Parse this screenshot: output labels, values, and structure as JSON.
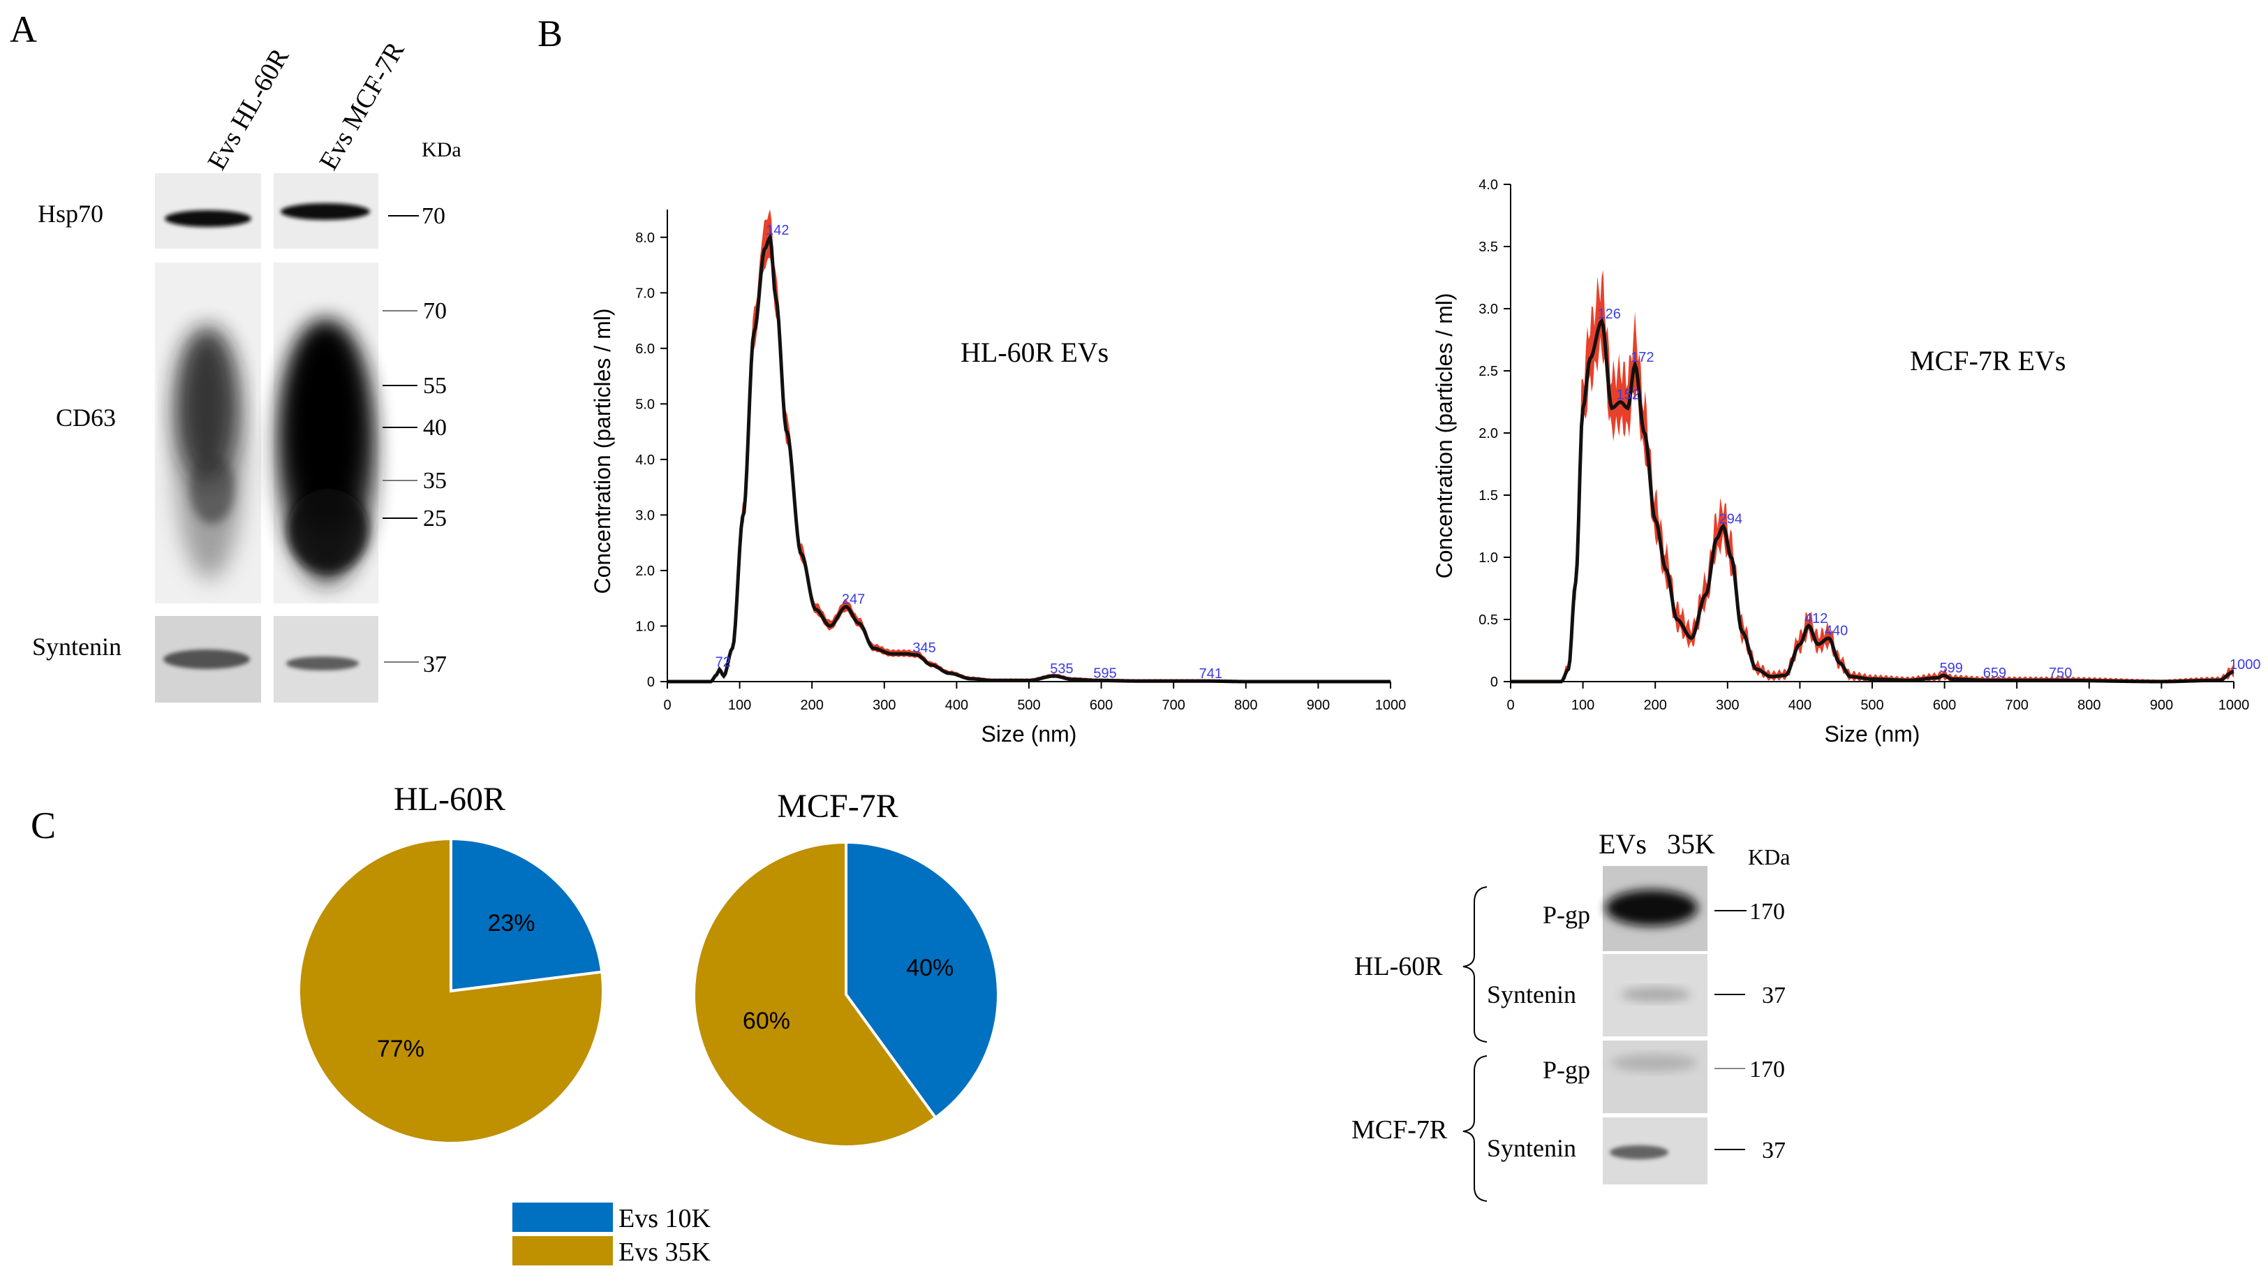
{
  "panel_labels": {
    "a": "A",
    "b": "B",
    "c": "C"
  },
  "colors": {
    "blot_band": "#111111",
    "blot_bg_light": "#ededed",
    "nta_ci": "#e8402a",
    "nta_mean": "#111111",
    "nta_peak_label": "#3a3ae8",
    "pie_10k": "#0070c0",
    "pie_35k": "#bf9000"
  },
  "panel_a": {
    "lanes": [
      "Evs HL-60R",
      "Evs MCF-7R"
    ],
    "kda_header": "KDa",
    "rows": [
      {
        "label": "Hsp70",
        "markers": [
          "70"
        ]
      },
      {
        "label": "CD63",
        "markers": [
          "70",
          "55",
          "40",
          "35",
          "25"
        ]
      },
      {
        "label": "Syntenin",
        "markers": [
          "37"
        ]
      }
    ]
  },
  "chart_data": [
    {
      "type": "line",
      "title": "HL-60R EVs",
      "xlabel": "Size (nm)",
      "ylabel": "Concentration (particles / ml)",
      "xlim": [
        0,
        1000
      ],
      "ylim": [
        0,
        8.5
      ],
      "x_ticks": [
        0,
        100,
        200,
        300,
        400,
        500,
        600,
        700,
        800,
        900,
        1000
      ],
      "y_ticks": [
        0,
        1.0,
        2.0,
        3.0,
        4.0,
        5.0,
        6.0,
        7.0,
        8.0
      ],
      "y_tick_labels": [
        "0",
        "1.0",
        "2.0",
        "3.0",
        "4.0",
        "5.0",
        "6.0",
        "7.0",
        "8.0"
      ],
      "series": [
        {
          "name": "mean",
          "x": [
            0,
            60,
            68,
            72,
            78,
            90,
            105,
            120,
            135,
            142,
            150,
            165,
            185,
            205,
            225,
            247,
            265,
            285,
            310,
            330,
            345,
            365,
            390,
            420,
            450,
            500,
            535,
            560,
            595,
            650,
            741,
            800,
            1000
          ],
          "y": [
            0,
            0,
            0.12,
            0.22,
            0.1,
            0.6,
            3.0,
            6.3,
            7.8,
            8.0,
            6.9,
            4.5,
            2.3,
            1.3,
            1.0,
            1.35,
            1.05,
            0.6,
            0.5,
            0.5,
            0.48,
            0.3,
            0.15,
            0.05,
            0.02,
            0.02,
            0.1,
            0.04,
            0.02,
            0.01,
            0.01,
            0,
            0
          ]
        }
      ],
      "peak_labels": [
        {
          "x": 72,
          "y": 0.22,
          "text": "72"
        },
        {
          "x": 142,
          "y": 8.0,
          "text": "142"
        },
        {
          "x": 247,
          "y": 1.35,
          "text": "247"
        },
        {
          "x": 345,
          "y": 0.48,
          "text": "345"
        },
        {
          "x": 535,
          "y": 0.1,
          "text": "535"
        },
        {
          "x": 595,
          "y": 0.02,
          "text": "595"
        },
        {
          "x": 741,
          "y": 0.01,
          "text": "741"
        }
      ]
    },
    {
      "type": "line",
      "title": "MCF-7R EVs",
      "xlabel": "Size (nm)",
      "ylabel": "Concentration (particles / ml)",
      "xlim": [
        0,
        1000
      ],
      "ylim": [
        0,
        4.0
      ],
      "x_ticks": [
        0,
        100,
        200,
        300,
        400,
        500,
        600,
        700,
        800,
        900,
        1000
      ],
      "y_ticks": [
        0,
        0.5,
        1.0,
        1.5,
        2.0,
        2.5,
        3.0,
        3.5,
        4.0
      ],
      "y_tick_labels": [
        "0",
        "0.5",
        "1.0",
        "1.5",
        "2.0",
        "2.5",
        "3.0",
        "3.5",
        "4.0"
      ],
      "series": [
        {
          "name": "mean",
          "x": [
            0,
            70,
            80,
            90,
            100,
            110,
            126,
            140,
            152,
            162,
            172,
            185,
            200,
            215,
            230,
            250,
            270,
            285,
            294,
            305,
            320,
            340,
            360,
            380,
            400,
            412,
            425,
            440,
            455,
            470,
            500,
            550,
            590,
            599,
            610,
            659,
            750,
            900,
            980,
            1000
          ],
          "y": [
            0,
            0,
            0.1,
            0.8,
            2.2,
            2.6,
            2.9,
            2.2,
            2.25,
            2.2,
            2.55,
            2.0,
            1.3,
            0.9,
            0.5,
            0.35,
            0.7,
            1.15,
            1.25,
            1.0,
            0.4,
            0.1,
            0.04,
            0.05,
            0.3,
            0.45,
            0.3,
            0.35,
            0.15,
            0.04,
            0.02,
            0.01,
            0.03,
            0.05,
            0.02,
            0.01,
            0.01,
            0,
            0.01,
            0.08
          ]
        }
      ],
      "peak_labels": [
        {
          "x": 126,
          "y": 2.9,
          "text": "126"
        },
        {
          "x": 172,
          "y": 2.55,
          "text": "172"
        },
        {
          "x": 152,
          "y": 2.25,
          "text": "152"
        },
        {
          "x": 294,
          "y": 1.25,
          "text": "294"
        },
        {
          "x": 412,
          "y": 0.45,
          "text": "412"
        },
        {
          "x": 440,
          "y": 0.35,
          "text": "440"
        },
        {
          "x": 599,
          "y": 0.05,
          "text": "599"
        },
        {
          "x": 659,
          "y": 0.01,
          "text": "659"
        },
        {
          "x": 750,
          "y": 0.01,
          "text": "750"
        },
        {
          "x": 1000,
          "y": 0.08,
          "text": "1000"
        }
      ]
    },
    {
      "type": "pie",
      "title": "HL-60R",
      "categories": [
        "Evs 10K",
        "Evs 35K"
      ],
      "values": [
        23,
        77
      ],
      "labels": [
        "23%",
        "77%"
      ]
    },
    {
      "type": "pie",
      "title": "MCF-7R",
      "categories": [
        "Evs 10K",
        "Evs 35K"
      ],
      "values": [
        40,
        60
      ],
      "labels": [
        "40%",
        "60%"
      ]
    }
  ],
  "panel_c_legend": [
    {
      "label": "Evs  10K",
      "series": "10K"
    },
    {
      "label": "Evs  35K",
      "series": "35K"
    }
  ],
  "panel_c_blot": {
    "lanes": [
      "EVs",
      "35K"
    ],
    "kda_header": "KDa",
    "groups": [
      {
        "label": "HL-60R",
        "rows": [
          {
            "label": "P-gp",
            "marker": "170"
          },
          {
            "label": "Syntenin",
            "marker": "37"
          }
        ]
      },
      {
        "label": "MCF-7R",
        "rows": [
          {
            "label": "P-gp",
            "marker": "170"
          },
          {
            "label": "Syntenin",
            "marker": "37"
          }
        ]
      }
    ]
  }
}
